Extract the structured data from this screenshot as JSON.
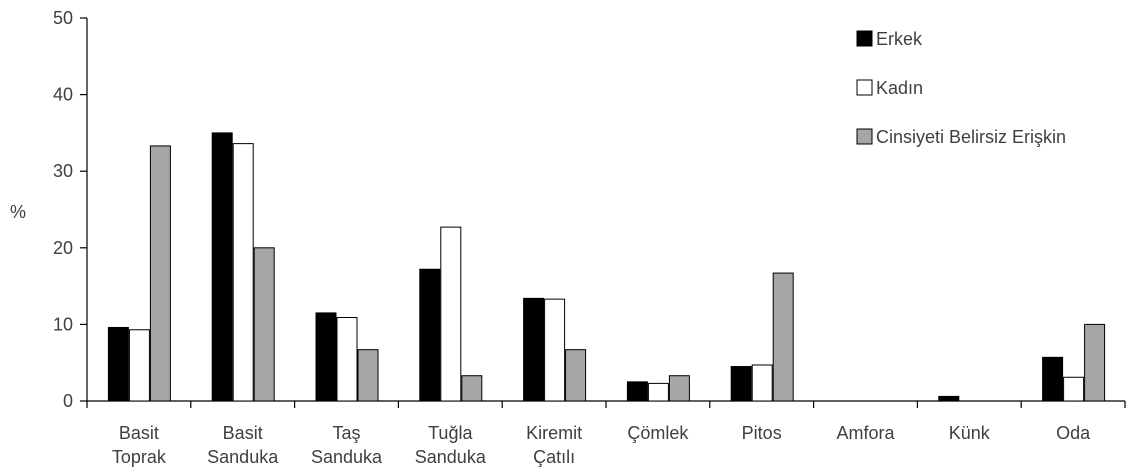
{
  "chart_data": {
    "type": "bar",
    "ylabel": "%",
    "ylim": [
      0,
      50
    ],
    "yticks": [
      0,
      10,
      20,
      30,
      40,
      50
    ],
    "legend_position": "top-right",
    "grid": false,
    "categories": [
      [
        "Basit",
        "Toprak"
      ],
      [
        "Basit",
        "Sanduka"
      ],
      [
        "Taş",
        "Sanduka"
      ],
      [
        "Tuğla",
        "Sanduka"
      ],
      [
        "Kiremit",
        "Çatılı"
      ],
      [
        "Çömlek"
      ],
      [
        "Pitos"
      ],
      [
        "Amfora"
      ],
      [
        "Künk"
      ],
      [
        "Oda"
      ]
    ],
    "series": [
      {
        "name": "Erkek",
        "color": "#000000",
        "values": [
          9.6,
          35.0,
          11.5,
          17.2,
          13.4,
          2.5,
          4.5,
          0,
          0.6,
          5.7
        ]
      },
      {
        "name": "Kadın",
        "color": "#ffffff",
        "values": [
          9.3,
          33.6,
          10.9,
          22.7,
          13.3,
          2.3,
          4.7,
          0,
          0,
          3.1
        ]
      },
      {
        "name": "Cinsiyeti Belirsiz Erişkin",
        "color": "#a6a6a6",
        "values": [
          33.3,
          20.0,
          6.7,
          3.3,
          6.7,
          3.3,
          16.7,
          0,
          0,
          10.0
        ]
      }
    ]
  }
}
